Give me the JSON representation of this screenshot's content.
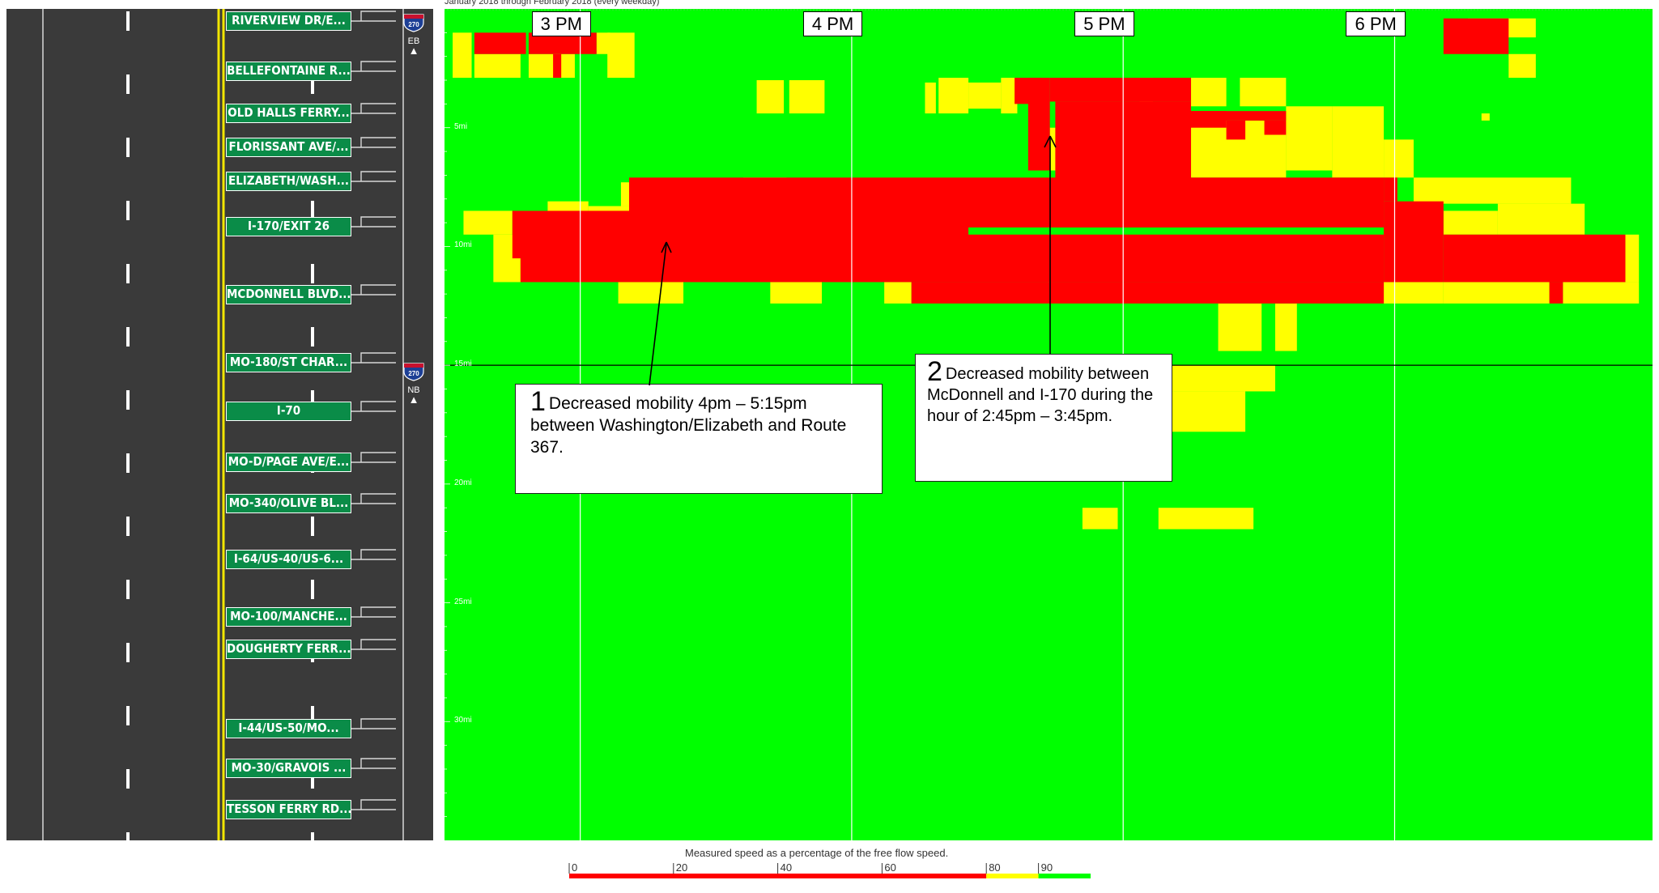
{
  "subtitle": "January 2018 through February 2018 (every weekday)",
  "exits": [
    {
      "label": "RIVERVIEW DR/E..."
    },
    {
      "label": "BELLEFONTAINE R..."
    },
    {
      "label": "OLD HALLS FERRY..."
    },
    {
      "label": "FLORISSANT AVE/..."
    },
    {
      "label": "ELIZABETH/WASH..."
    },
    {
      "label": "I-170/EXIT 26"
    },
    {
      "label": "MCDONNELL BLVD..."
    },
    {
      "label": "MO-180/ST CHAR..."
    },
    {
      "label": "I-70"
    },
    {
      "label": "MO-D/PAGE AVE/E..."
    },
    {
      "label": "MO-340/OLIVE BL..."
    },
    {
      "label": "I-64/US-40/US-6..."
    },
    {
      "label": "MO-100/MANCHE..."
    },
    {
      "label": "DOUGHERTY FERR..."
    },
    {
      "label": "I-44/US-50/MO..."
    },
    {
      "label": "MO-30/GRAVOIS ..."
    },
    {
      "label": "TESSON FERRY RD..."
    }
  ],
  "shields": [
    {
      "route": "270",
      "direction": "EB"
    },
    {
      "route": "270",
      "direction": "NB"
    }
  ],
  "callouts": [
    {
      "number": "1",
      "text": "Decreased mobility 4pm – 5:15pm between Washington/Elizabeth and Route 367."
    },
    {
      "number": "2",
      "text": "Decreased mobility between McDonnell and I-170 during the hour of 2:45pm – 3:45pm."
    }
  ],
  "colors": {
    "red": "#ff0000",
    "yellow": "#ffff00",
    "green": "#00ff00",
    "road": "#3a3a3a",
    "sign": "#0a8c48"
  },
  "chart_data": {
    "type": "heatmap",
    "title": "",
    "x_axis": {
      "type": "time",
      "start_hour": 14.5,
      "end_hour": 18.95,
      "ticks": [
        "3 PM",
        "4 PM",
        "5 PM",
        "6 PM"
      ]
    },
    "y_axis": {
      "unit": "mi",
      "range": [
        0,
        35
      ],
      "ticks": [
        "5mi",
        "10mi",
        "15mi",
        "20mi",
        "25mi",
        "30mi"
      ]
    },
    "bins": [
      {
        "label": "0",
        "from": 0,
        "to": 80,
        "color": "#ff0000"
      },
      {
        "label": "80",
        "from": 80,
        "to": 90,
        "color": "#ffff00"
      },
      {
        "label": "90",
        "from": 90,
        "to": 100,
        "color": "#00ff00"
      }
    ],
    "legend": {
      "title": "Measured speed as a percentage of the free flow speed.",
      "ticks": [
        "0",
        "20",
        "40",
        "60",
        "80",
        "90"
      ]
    },
    "cells": [
      {
        "t0": 14.53,
        "t1": 14.6,
        "m0": 1.0,
        "m1": 2.9,
        "level": "yellow"
      },
      {
        "t0": 14.61,
        "t1": 14.8,
        "m0": 1.0,
        "m1": 1.9,
        "level": "red"
      },
      {
        "t0": 14.61,
        "t1": 14.78,
        "m0": 1.9,
        "m1": 2.9,
        "level": "yellow"
      },
      {
        "t0": 14.81,
        "t1": 15.06,
        "m0": 1.0,
        "m1": 1.9,
        "level": "red"
      },
      {
        "t0": 14.81,
        "t1": 14.98,
        "m0": 1.9,
        "m1": 2.9,
        "level": "yellow"
      },
      {
        "t0": 14.9,
        "t1": 14.93,
        "m0": 1.9,
        "m1": 2.9,
        "level": "red"
      },
      {
        "t0": 15.06,
        "t1": 15.11,
        "m0": 1.0,
        "m1": 1.9,
        "level": "yellow"
      },
      {
        "t0": 15.1,
        "t1": 15.2,
        "m0": 1.0,
        "m1": 2.9,
        "level": "yellow"
      },
      {
        "t0": 16.27,
        "t1": 16.31,
        "m0": 3.1,
        "m1": 4.4,
        "level": "yellow"
      },
      {
        "t0": 16.32,
        "t1": 16.43,
        "m0": 2.9,
        "m1": 4.4,
        "level": "yellow"
      },
      {
        "t0": 16.43,
        "t1": 16.55,
        "m0": 3.1,
        "m1": 4.2,
        "level": "yellow"
      },
      {
        "t0": 16.55,
        "t1": 16.61,
        "m0": 2.9,
        "m1": 4.4,
        "level": "yellow"
      },
      {
        "t0": 16.6,
        "t1": 16.7,
        "m0": 2.9,
        "m1": 4.0,
        "level": "red"
      },
      {
        "t0": 16.65,
        "t1": 16.73,
        "m0": 2.9,
        "m1": 6.8,
        "level": "red"
      },
      {
        "t0": 16.73,
        "t1": 16.84,
        "m0": 5.0,
        "m1": 6.8,
        "level": "yellow"
      },
      {
        "t0": 16.73,
        "t1": 17.25,
        "m0": 2.9,
        "m1": 3.9,
        "level": "red"
      },
      {
        "t0": 16.75,
        "t1": 17.25,
        "m0": 3.9,
        "m1": 9.2,
        "level": "red"
      },
      {
        "t0": 17.25,
        "t1": 17.38,
        "m0": 2.9,
        "m1": 4.1,
        "level": "yellow"
      },
      {
        "t0": 17.06,
        "t1": 17.11,
        "m0": 2.9,
        "m1": 4.3,
        "level": "yellow"
      },
      {
        "t0": 17.11,
        "t1": 17.38,
        "m0": 4.3,
        "m1": 5.0,
        "level": "red"
      },
      {
        "t0": 17.14,
        "t1": 17.6,
        "m0": 4.3,
        "m1": 4.7,
        "level": "red"
      },
      {
        "t0": 17.25,
        "t1": 17.6,
        "m0": 4.7,
        "m1": 7.1,
        "level": "yellow"
      },
      {
        "t0": 17.28,
        "t1": 17.36,
        "m0": 5.0,
        "m1": 6.8,
        "level": "yellow"
      },
      {
        "t0": 17.38,
        "t1": 17.45,
        "m0": 4.7,
        "m1": 5.5,
        "level": "red"
      },
      {
        "t0": 17.42,
        "t1": 17.5,
        "m0": 4.7,
        "m1": 5.5,
        "level": "yellow"
      },
      {
        "t0": 17.43,
        "t1": 17.6,
        "m0": 2.9,
        "m1": 4.1,
        "level": "yellow"
      },
      {
        "t0": 17.52,
        "t1": 17.6,
        "m0": 4.7,
        "m1": 5.3,
        "level": "red"
      },
      {
        "t0": 17.6,
        "t1": 17.77,
        "m0": 4.1,
        "m1": 6.8,
        "level": "yellow"
      },
      {
        "t0": 17.77,
        "t1": 17.96,
        "m0": 4.1,
        "m1": 7.1,
        "level": "yellow"
      },
      {
        "t0": 17.96,
        "t1": 18.07,
        "m0": 5.5,
        "m1": 7.1,
        "level": "yellow"
      },
      {
        "t0": 17.96,
        "t1": 18.01,
        "m0": 7.1,
        "m1": 8.1,
        "level": "red"
      },
      {
        "t0": 15.18,
        "t1": 17.96,
        "m0": 7.1,
        "m1": 9.2,
        "level": "red"
      },
      {
        "t0": 15.6,
        "t1": 15.76,
        "m0": 7.1,
        "m1": 8.2,
        "level": "yellow"
      },
      {
        "t0": 15.76,
        "t1": 16.0,
        "m0": 8.2,
        "m1": 9.2,
        "level": "red"
      },
      {
        "t0": 14.57,
        "t1": 14.75,
        "m0": 8.5,
        "m1": 9.5,
        "level": "yellow"
      },
      {
        "t0": 14.75,
        "t1": 16.43,
        "m0": 8.5,
        "m1": 10.5,
        "level": "red"
      },
      {
        "t0": 14.88,
        "t1": 15.03,
        "m0": 8.1,
        "m1": 8.6,
        "level": "yellow"
      },
      {
        "t0": 15.03,
        "t1": 15.32,
        "m0": 8.3,
        "m1": 9.5,
        "level": "yellow"
      },
      {
        "t0": 15.35,
        "t1": 15.5,
        "m0": 8.3,
        "m1": 9.5,
        "level": "yellow"
      },
      {
        "t0": 15.15,
        "t1": 15.24,
        "m0": 7.3,
        "m1": 8.3,
        "level": "yellow"
      },
      {
        "t0": 15.5,
        "t1": 15.78,
        "m0": 8.3,
        "m1": 9.5,
        "level": "yellow"
      },
      {
        "t0": 14.68,
        "t1": 14.78,
        "m0": 9.5,
        "m1": 11.5,
        "level": "yellow"
      },
      {
        "t0": 14.78,
        "t1": 17.96,
        "m0": 9.5,
        "m1": 11.5,
        "level": "red"
      },
      {
        "t0": 17.96,
        "t1": 18.18,
        "m0": 8.1,
        "m1": 11.5,
        "level": "red"
      },
      {
        "t0": 18.18,
        "t1": 18.38,
        "m0": 8.5,
        "m1": 9.5,
        "level": "yellow"
      },
      {
        "t0": 18.18,
        "t1": 18.85,
        "m0": 9.5,
        "m1": 11.5,
        "level": "red"
      },
      {
        "t0": 18.85,
        "t1": 18.9,
        "m0": 9.5,
        "m1": 11.5,
        "level": "yellow"
      },
      {
        "t0": 18.07,
        "t1": 18.65,
        "m0": 7.1,
        "m1": 8.2,
        "level": "yellow"
      },
      {
        "t0": 18.38,
        "t1": 18.7,
        "m0": 8.2,
        "m1": 9.5,
        "level": "yellow"
      },
      {
        "t0": 15.14,
        "t1": 15.38,
        "m0": 11.5,
        "m1": 12.4,
        "level": "yellow"
      },
      {
        "t0": 15.7,
        "t1": 15.89,
        "m0": 11.5,
        "m1": 12.4,
        "level": "yellow"
      },
      {
        "t0": 16.12,
        "t1": 16.22,
        "m0": 11.5,
        "m1": 12.4,
        "level": "yellow"
      },
      {
        "t0": 16.22,
        "t1": 17.96,
        "m0": 11.5,
        "m1": 12.4,
        "level": "red"
      },
      {
        "t0": 17.96,
        "t1": 18.18,
        "m0": 11.5,
        "m1": 12.4,
        "level": "yellow"
      },
      {
        "t0": 18.18,
        "t1": 18.57,
        "m0": 11.5,
        "m1": 12.4,
        "level": "yellow"
      },
      {
        "t0": 18.57,
        "t1": 18.62,
        "m0": 11.5,
        "m1": 12.4,
        "level": "red"
      },
      {
        "t0": 18.62,
        "t1": 18.9,
        "m0": 11.5,
        "m1": 12.4,
        "level": "yellow"
      },
      {
        "t0": 17.35,
        "t1": 17.51,
        "m0": 12.4,
        "m1": 14.4,
        "level": "yellow"
      },
      {
        "t0": 17.56,
        "t1": 17.64,
        "m0": 12.4,
        "m1": 14.4,
        "level": "yellow"
      },
      {
        "t0": 17.04,
        "t1": 17.56,
        "m0": 15.0,
        "m1": 16.1,
        "level": "yellow"
      },
      {
        "t0": 17.08,
        "t1": 17.45,
        "m0": 16.1,
        "m1": 17.8,
        "level": "yellow"
      },
      {
        "t0": 16.85,
        "t1": 16.98,
        "m0": 21.0,
        "m1": 21.9,
        "level": "yellow"
      },
      {
        "t0": 17.13,
        "t1": 17.48,
        "m0": 21.0,
        "m1": 21.9,
        "level": "yellow"
      },
      {
        "t0": 18.18,
        "t1": 18.42,
        "m0": 0.4,
        "m1": 1.9,
        "level": "red"
      },
      {
        "t0": 18.42,
        "t1": 18.52,
        "m0": 1.9,
        "m1": 2.9,
        "level": "yellow"
      },
      {
        "t0": 18.27,
        "t1": 18.52,
        "m0": 0.4,
        "m1": 1.2,
        "level": "yellow"
      },
      {
        "t0": 18.32,
        "t1": 18.35,
        "m0": 4.4,
        "m1": 4.7,
        "level": "yellow"
      },
      {
        "t0": 15.65,
        "t1": 15.75,
        "m0": 3.0,
        "m1": 4.4,
        "level": "yellow"
      },
      {
        "t0": 15.77,
        "t1": 15.9,
        "m0": 3.0,
        "m1": 4.4,
        "level": "yellow"
      }
    ]
  }
}
